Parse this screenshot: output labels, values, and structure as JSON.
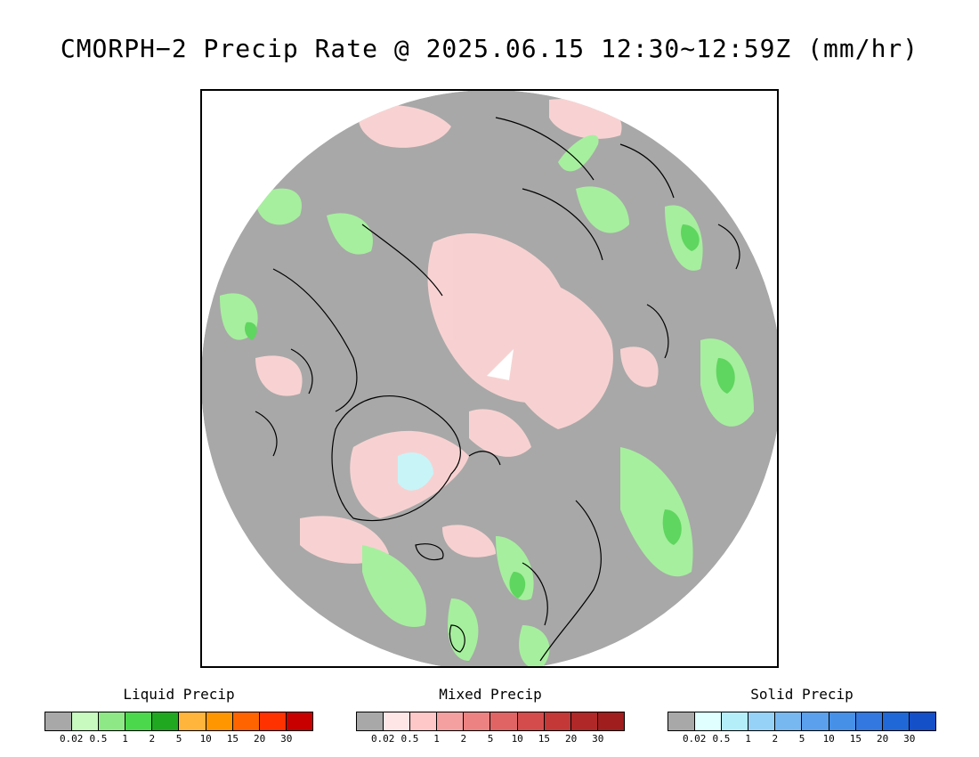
{
  "title": "CMORPH−2 Precip Rate @ 2025.06.15 12:30~12:59Z (mm/hr)",
  "map": {
    "colors": {
      "no_precip": "#a8a8a8",
      "mixed_light": "#fcd4d4",
      "liquid_light": "#a6ef9e",
      "liquid_mid": "#5fd65f",
      "solid_light": "#c8f4f8",
      "coast": "#000000"
    }
  },
  "legends": [
    {
      "title": "Liquid Precip",
      "colors": [
        "#a8a8a8",
        "#c8fac0",
        "#8ee886",
        "#4cd84c",
        "#20a820",
        "#ffb43c",
        "#ff9600",
        "#ff6400",
        "#ff3200",
        "#c80000"
      ],
      "ticks": [
        "0.02",
        "0.5",
        "1",
        "2",
        "5",
        "10",
        "15",
        "20",
        "30"
      ]
    },
    {
      "title": "Mixed Precip",
      "colors": [
        "#a8a8a8",
        "#ffe6e6",
        "#ffc8c8",
        "#f5a0a0",
        "#ec8282",
        "#e06464",
        "#d44c4c",
        "#c43838",
        "#b02828",
        "#a01e1e"
      ],
      "ticks": [
        "0.02",
        "0.5",
        "1",
        "2",
        "5",
        "10",
        "15",
        "20",
        "30"
      ]
    },
    {
      "title": "Solid Precip",
      "colors": [
        "#a8a8a8",
        "#e0ffff",
        "#b4eef8",
        "#96d2f8",
        "#78b8f0",
        "#5aa0ec",
        "#4690e8",
        "#3278e0",
        "#2068d8",
        "#1450c8"
      ],
      "ticks": [
        "0.02",
        "0.5",
        "1",
        "2",
        "5",
        "10",
        "15",
        "20",
        "30"
      ]
    }
  ]
}
